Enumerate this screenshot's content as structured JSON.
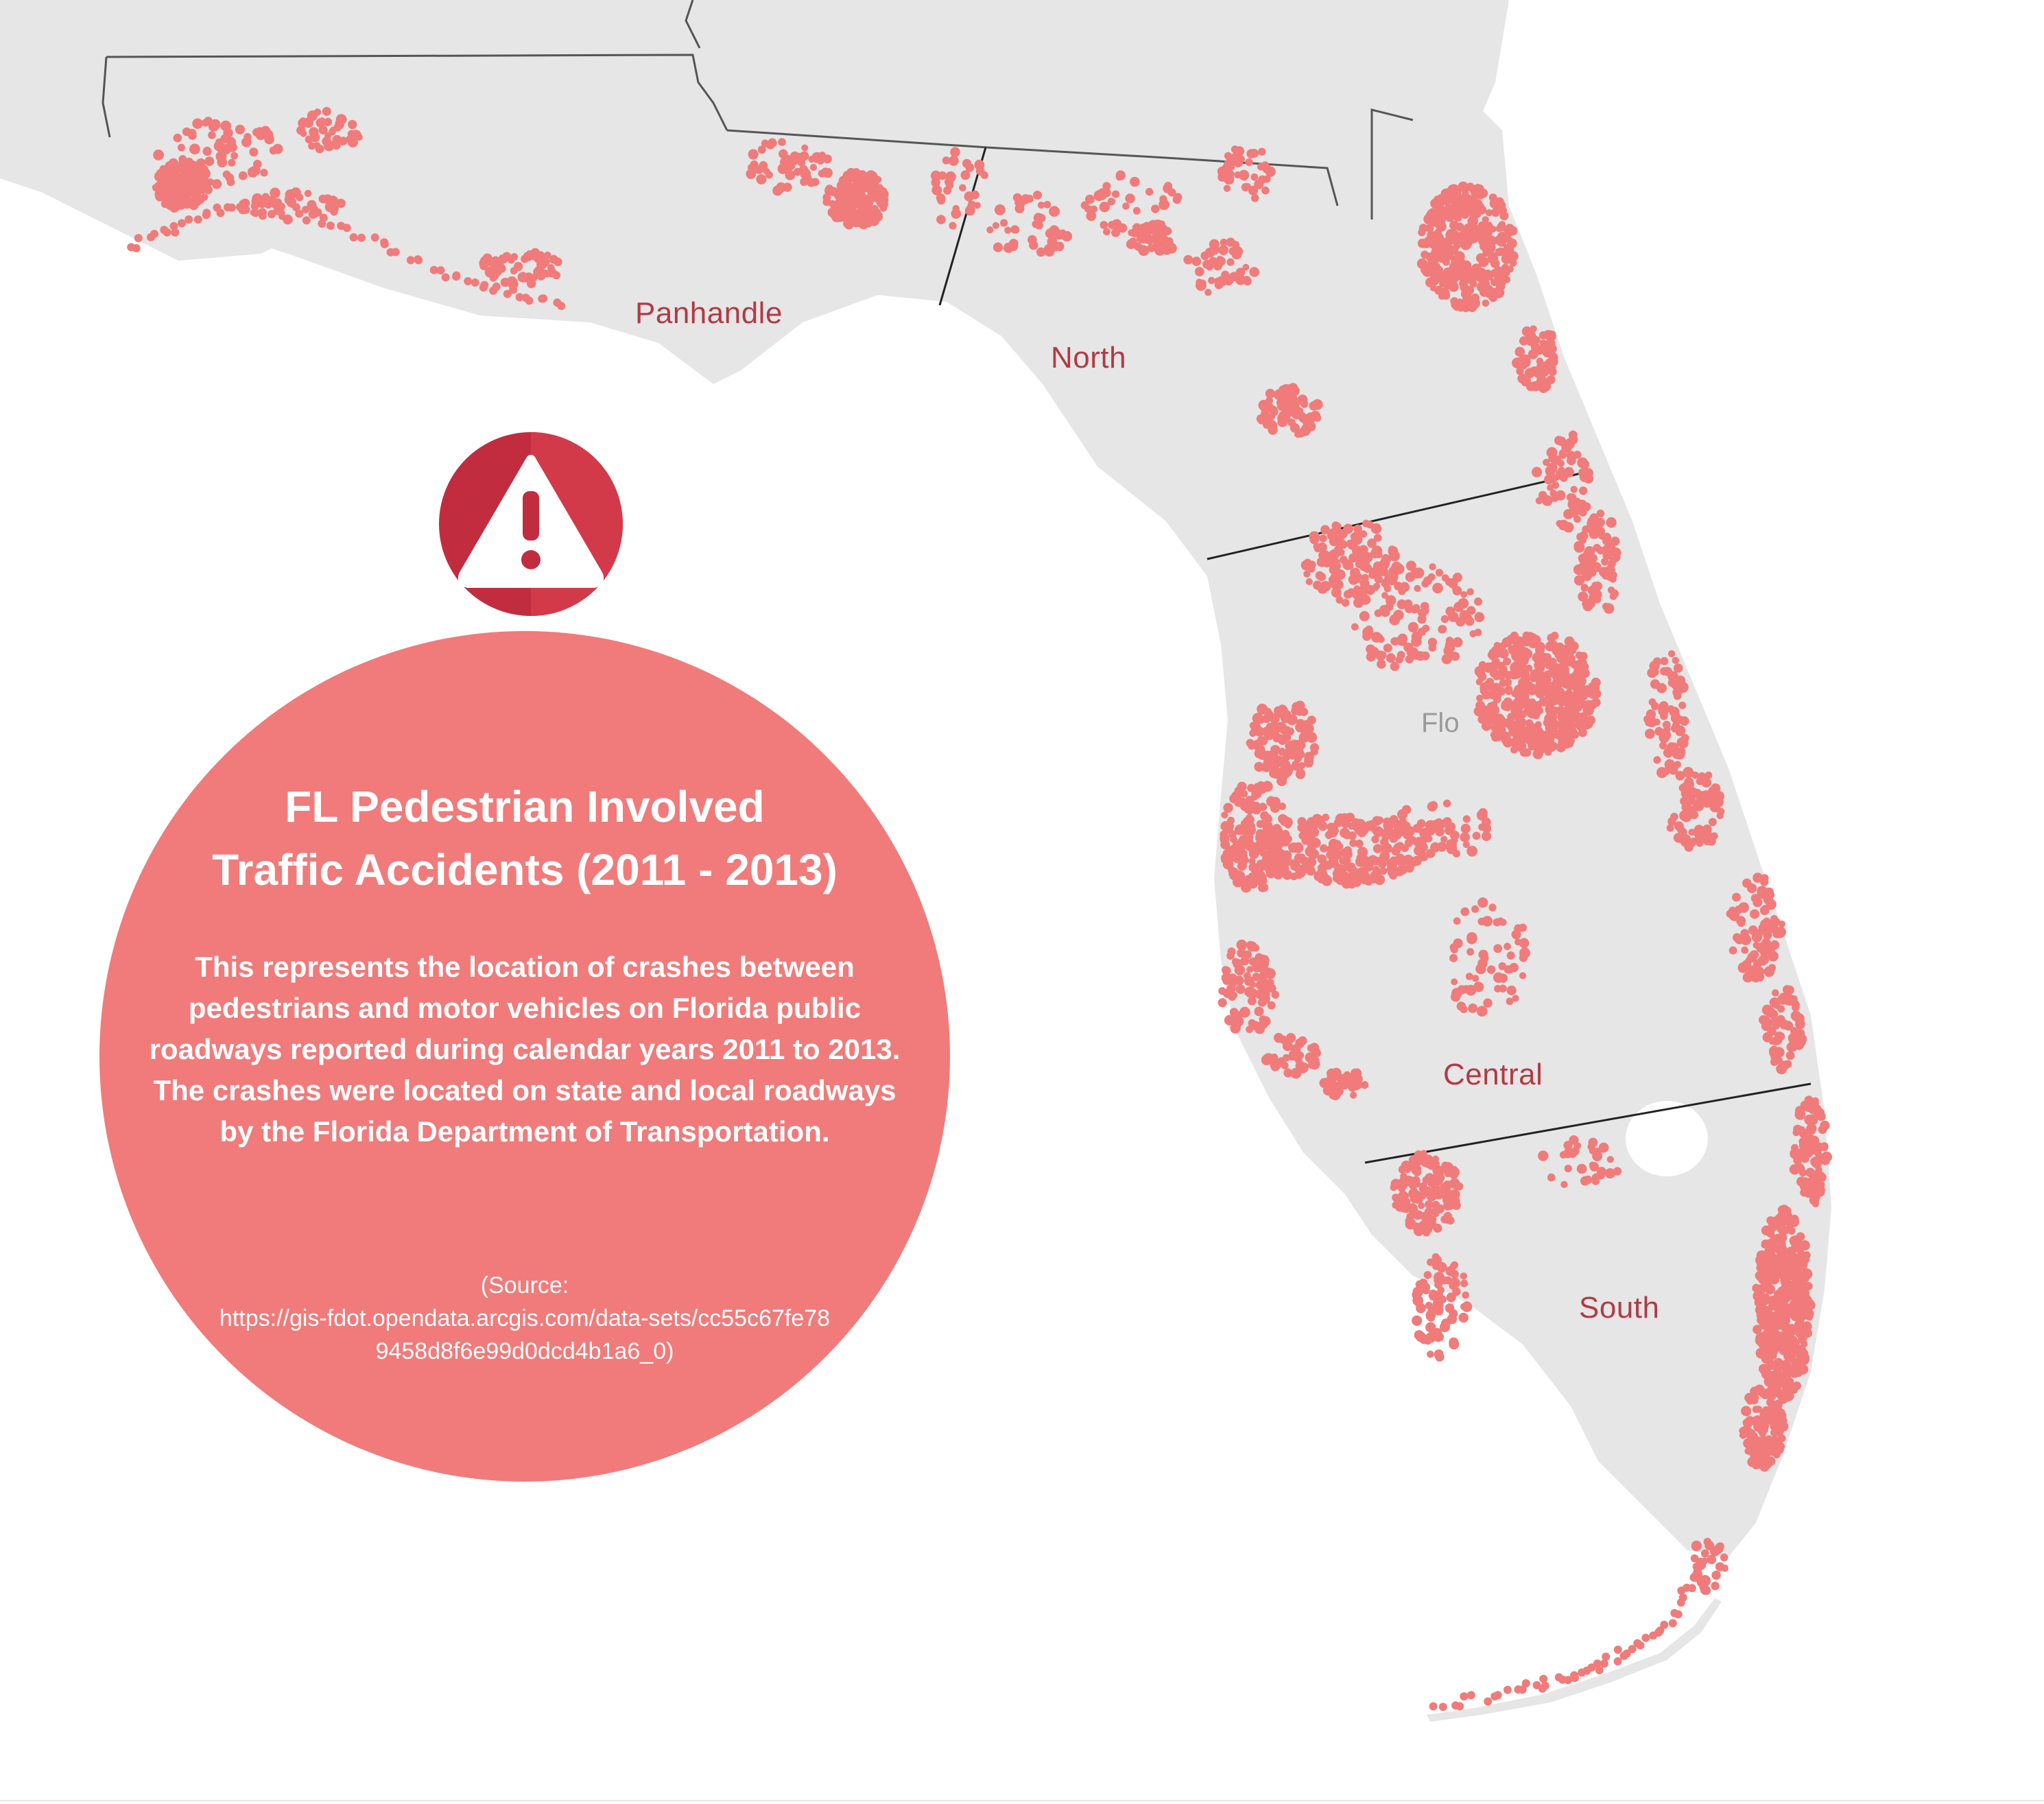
{
  "map": {
    "region_labels": [
      "Panhandle",
      "North",
      "Central",
      "South"
    ],
    "partial_basemap_label": "Flo",
    "colors": {
      "land": "#e6e6e6",
      "water": "#ffffff",
      "crash_point": "#f07b7a",
      "state_border": "#555555",
      "region_divider": "#222222",
      "region_label": "#b23a44"
    }
  },
  "info_panel": {
    "icon": "warning-icon",
    "title_line1": "FL Pedestrian Involved",
    "title_line2": "Traffic Accidents (2011 - 2013)",
    "description": "This represents the location of crashes between pedestrians and motor vehicles on Florida public roadways reported during calendar years 2011 to 2013. The crashes were located on state and local roadways by the Florida Department of Transportation.",
    "source_line1": "(Source:",
    "source_line2": "https://gis-fdot.opendata.arcgis.com/data-sets/cc55c67fe789458d8f6e99d0dcd4b1a6_0)",
    "circle_color": "#f07b7a",
    "icon_color": "#c12d3f"
  }
}
